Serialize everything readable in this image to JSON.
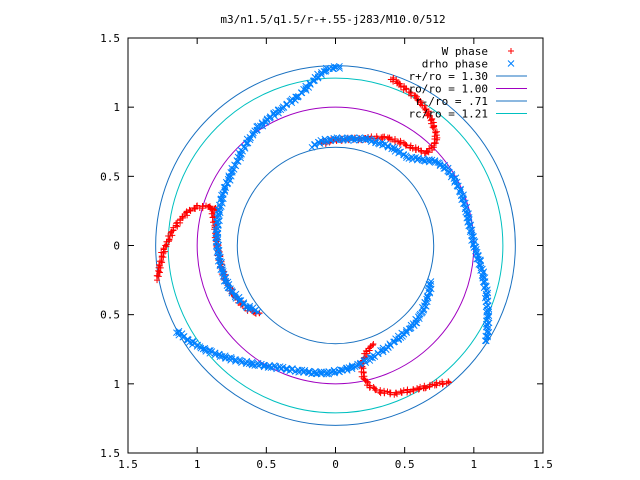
{
  "chart_data": {
    "type": "scatter",
    "title": "m3/n1.5/q1.5/r-+.55-j283/M10.0/512",
    "xlabel": "",
    "ylabel": "",
    "xlim": [
      -1.5,
      1.5
    ],
    "ylim": [
      -1.5,
      1.5
    ],
    "x_ticks": [
      -1.5,
      -1,
      -0.5,
      0,
      0.5,
      1,
      1.5
    ],
    "y_ticks": [
      -1.5,
      -1,
      -0.5,
      0,
      0.5,
      1,
      1.5
    ],
    "x_tick_labels": [
      "1.5",
      "1",
      "0.5",
      "0",
      "0.5",
      "1",
      "1.5"
    ],
    "y_tick_labels": [
      "1.5",
      "1",
      "0.5",
      "0",
      "0.5",
      "1",
      "1.5"
    ],
    "grid": false,
    "legend_position": "top-right",
    "series": [
      {
        "name": "W phase",
        "marker": "plus",
        "color": "#ff0000",
        "arms": [
          [
            [
              0.4,
              1.21
            ],
            [
              0.46,
              1.17
            ],
            [
              0.52,
              1.12
            ],
            [
              0.58,
              1.07
            ],
            [
              0.63,
              1.02
            ],
            [
              0.66,
              0.97
            ],
            [
              0.69,
              0.91
            ],
            [
              0.72,
              0.84
            ],
            [
              0.73,
              0.78
            ],
            [
              0.71,
              0.72
            ],
            [
              0.66,
              0.67
            ],
            [
              0.57,
              0.7
            ],
            [
              0.48,
              0.74
            ],
            [
              0.38,
              0.78
            ],
            [
              0.28,
              0.78
            ],
            [
              0.18,
              0.77
            ],
            [
              0.08,
              0.77
            ],
            [
              -0.02,
              0.76
            ],
            [
              -0.1,
              0.74
            ]
          ],
          [
            [
              -1.29,
              -0.24
            ],
            [
              -1.27,
              -0.16
            ],
            [
              -1.25,
              -0.06
            ],
            [
              -1.21,
              0.04
            ],
            [
              -1.17,
              0.12
            ],
            [
              -1.12,
              0.19
            ],
            [
              -1.06,
              0.25
            ],
            [
              -0.99,
              0.28
            ],
            [
              -0.92,
              0.28
            ],
            [
              -0.86,
              0.26
            ]
          ],
          [
            [
              -0.89,
              0.27
            ],
            [
              -0.87,
              0.12
            ],
            [
              -0.85,
              -0.02
            ],
            [
              -0.83,
              -0.14
            ],
            [
              -0.8,
              -0.24
            ],
            [
              -0.76,
              -0.32
            ],
            [
              -0.71,
              -0.39
            ],
            [
              -0.66,
              -0.44
            ],
            [
              -0.6,
              -0.48
            ],
            [
              -0.55,
              -0.49
            ]
          ],
          [
            [
              0.27,
              -0.71
            ],
            [
              0.22,
              -0.78
            ],
            [
              0.19,
              -0.86
            ],
            [
              0.2,
              -0.95
            ],
            [
              0.25,
              -1.02
            ],
            [
              0.33,
              -1.06
            ],
            [
              0.43,
              -1.07
            ],
            [
              0.53,
              -1.05
            ],
            [
              0.63,
              -1.03
            ],
            [
              0.73,
              -1.0
            ],
            [
              0.82,
              -0.99
            ]
          ]
        ]
      },
      {
        "name": "drho phase",
        "marker": "cross",
        "color": "#0080ff",
        "arms": [
          [
            [
              0.03,
              1.29
            ],
            [
              -0.05,
              1.28
            ],
            [
              -0.12,
              1.23
            ],
            [
              -0.19,
              1.16
            ],
            [
              -0.27,
              1.08
            ],
            [
              -0.38,
              1.0
            ],
            [
              -0.48,
              0.92
            ],
            [
              -0.56,
              0.85
            ],
            [
              -0.62,
              0.78
            ],
            [
              -0.68,
              0.67
            ],
            [
              -0.75,
              0.53
            ],
            [
              -0.81,
              0.39
            ],
            [
              -0.84,
              0.25
            ],
            [
              -0.86,
              0.1
            ],
            [
              -0.85,
              -0.05
            ],
            [
              -0.82,
              -0.18
            ],
            [
              -0.78,
              -0.29
            ],
            [
              -0.72,
              -0.37
            ],
            [
              -0.64,
              -0.44
            ],
            [
              -0.56,
              -0.48
            ]
          ],
          [
            [
              -0.17,
              0.72
            ],
            [
              -0.08,
              0.76
            ],
            [
              0.02,
              0.77
            ],
            [
              0.12,
              0.77
            ],
            [
              0.22,
              0.77
            ],
            [
              0.32,
              0.74
            ],
            [
              0.42,
              0.7
            ],
            [
              0.52,
              0.64
            ],
            [
              0.62,
              0.62
            ],
            [
              0.72,
              0.61
            ],
            [
              0.8,
              0.56
            ],
            [
              0.86,
              0.48
            ],
            [
              0.91,
              0.38
            ],
            [
              0.95,
              0.24
            ],
            [
              0.98,
              0.1
            ],
            [
              1.01,
              -0.02
            ],
            [
              1.04,
              -0.12
            ],
            [
              1.07,
              -0.22
            ],
            [
              1.09,
              -0.34
            ],
            [
              1.1,
              -0.48
            ],
            [
              1.1,
              -0.6
            ],
            [
              1.09,
              -0.69
            ]
          ],
          [
            [
              -1.15,
              -0.62
            ],
            [
              -1.07,
              -0.68
            ],
            [
              -0.97,
              -0.74
            ],
            [
              -0.85,
              -0.79
            ],
            [
              -0.72,
              -0.83
            ],
            [
              -0.58,
              -0.86
            ],
            [
              -0.44,
              -0.88
            ],
            [
              -0.3,
              -0.9
            ],
            [
              -0.16,
              -0.92
            ],
            [
              -0.05,
              -0.92
            ],
            [
              0.06,
              -0.9
            ],
            [
              0.17,
              -0.86
            ],
            [
              0.28,
              -0.8
            ],
            [
              0.38,
              -0.73
            ],
            [
              0.48,
              -0.65
            ],
            [
              0.57,
              -0.57
            ],
            [
              0.63,
              -0.47
            ],
            [
              0.67,
              -0.37
            ],
            [
              0.69,
              -0.26
            ]
          ]
        ]
      }
    ],
    "circles": [
      {
        "name": "r+/ro = 1.30",
        "r": 1.3,
        "color": "#1870c0"
      },
      {
        "name": "ro/ro = 1.00",
        "r": 1.0,
        "color": "#a000c0"
      },
      {
        "name": "r-/ro = .71",
        "r": 0.71,
        "color": "#1870c0"
      },
      {
        "name": "rc/ro = 1.21",
        "r": 1.21,
        "color": "#00c0c0"
      }
    ]
  }
}
